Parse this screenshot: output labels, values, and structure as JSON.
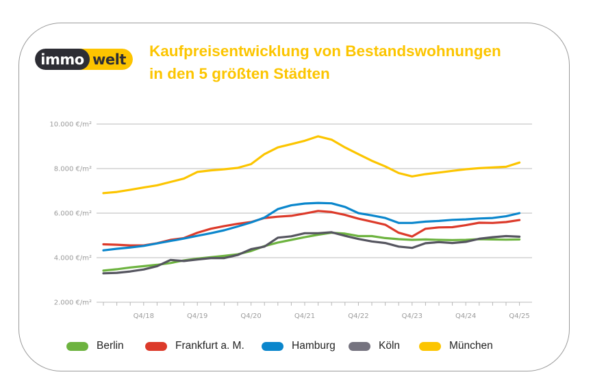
{
  "logo": {
    "part1": "immo",
    "part2": "welt"
  },
  "title": {
    "line1": "Kaufpreisentwicklung von Bestandswohnungen",
    "line2": "in den 5 größten Städten"
  },
  "colors": {
    "title": "#fcc500",
    "Berlin": "#6db33f",
    "Frankfurt a. M.": "#dc3a2a",
    "Hamburg": "#0a86cc",
    "Köln": "#55555f",
    "München": "#fcc500",
    "grid": "#c8c8c8"
  },
  "legend": [
    {
      "label": "Berlin",
      "color": "#6db33f"
    },
    {
      "label": "Frankfurt a. M.",
      "color": "#dc3a2a"
    },
    {
      "label": "Hamburg",
      "color": "#0a86cc"
    },
    {
      "label": "Köln",
      "color": "#75737f"
    },
    {
      "label": "München",
      "color": "#fcc500"
    }
  ],
  "chart_data": {
    "type": "line",
    "title": "Kaufpreisentwicklung von Bestandswohnungen in den 5 größten Städten",
    "xlabel": "",
    "ylabel": "",
    "ylim": [
      2000,
      10000
    ],
    "yticks": [
      2000,
      4000,
      6000,
      8000,
      10000
    ],
    "ytick_labels": [
      "2.000 €/m²",
      "4.000 €/m²",
      "6.000 €/m²",
      "8.000 €/m²",
      "10.000 €/m²"
    ],
    "grid": true,
    "legend_position": "bottom",
    "x": [
      "Q1/18",
      "Q2/18",
      "Q3/18",
      "Q4/18",
      "Q1/19",
      "Q2/19",
      "Q3/19",
      "Q4/19",
      "Q1/20",
      "Q2/20",
      "Q3/20",
      "Q4/20",
      "Q1/21",
      "Q2/21",
      "Q3/21",
      "Q4/21",
      "Q1/22",
      "Q2/22",
      "Q3/22",
      "Q4/22",
      "Q1/23",
      "Q2/23",
      "Q3/23",
      "Q4/23",
      "Q1/24",
      "Q2/24",
      "Q3/24",
      "Q4/24",
      "Q1/25",
      "Q2/25",
      "Q3/25",
      "Q4/25"
    ],
    "xtick_labels": [
      "Q4/18",
      "Q4/19",
      "Q4/20",
      "Q4/21",
      "Q4/22",
      "Q4/23",
      "Q4/24",
      "Q4/25"
    ],
    "series": [
      {
        "name": "Berlin",
        "values": [
          3420,
          3480,
          3560,
          3620,
          3680,
          3760,
          3880,
          3960,
          4020,
          4080,
          4150,
          4300,
          4520,
          4680,
          4800,
          4920,
          5030,
          5120,
          5080,
          4970,
          4970,
          4880,
          4830,
          4800,
          4820,
          4800,
          4790,
          4800,
          4830,
          4820,
          4810,
          4820
        ]
      },
      {
        "name": "Frankfurt a. M.",
        "values": [
          4600,
          4580,
          4550,
          4550,
          4650,
          4800,
          4880,
          5120,
          5300,
          5420,
          5520,
          5600,
          5780,
          5840,
          5880,
          5980,
          6100,
          6050,
          5920,
          5750,
          5620,
          5480,
          5120,
          4950,
          5300,
          5360,
          5370,
          5460,
          5570,
          5560,
          5600,
          5690
        ]
      },
      {
        "name": "Hamburg",
        "values": [
          4330,
          4400,
          4460,
          4530,
          4640,
          4750,
          4860,
          4980,
          5100,
          5230,
          5400,
          5580,
          5800,
          6180,
          6350,
          6430,
          6460,
          6440,
          6280,
          6000,
          5900,
          5780,
          5560,
          5560,
          5620,
          5650,
          5700,
          5720,
          5760,
          5780,
          5860,
          6000
        ]
      },
      {
        "name": "Köln",
        "values": [
          3300,
          3320,
          3380,
          3470,
          3620,
          3900,
          3850,
          3920,
          3980,
          3980,
          4120,
          4380,
          4500,
          4900,
          4960,
          5100,
          5100,
          5140,
          4980,
          4840,
          4730,
          4660,
          4500,
          4440,
          4650,
          4700,
          4660,
          4710,
          4850,
          4920,
          4970,
          4940
        ]
      },
      {
        "name": "München",
        "values": [
          6900,
          6950,
          7050,
          7150,
          7250,
          7400,
          7550,
          7850,
          7920,
          7970,
          8030,
          8200,
          8650,
          8950,
          9100,
          9250,
          9450,
          9300,
          8950,
          8650,
          8350,
          8100,
          7800,
          7650,
          7750,
          7820,
          7900,
          7970,
          8020,
          8050,
          8080,
          8270
        ]
      }
    ]
  }
}
